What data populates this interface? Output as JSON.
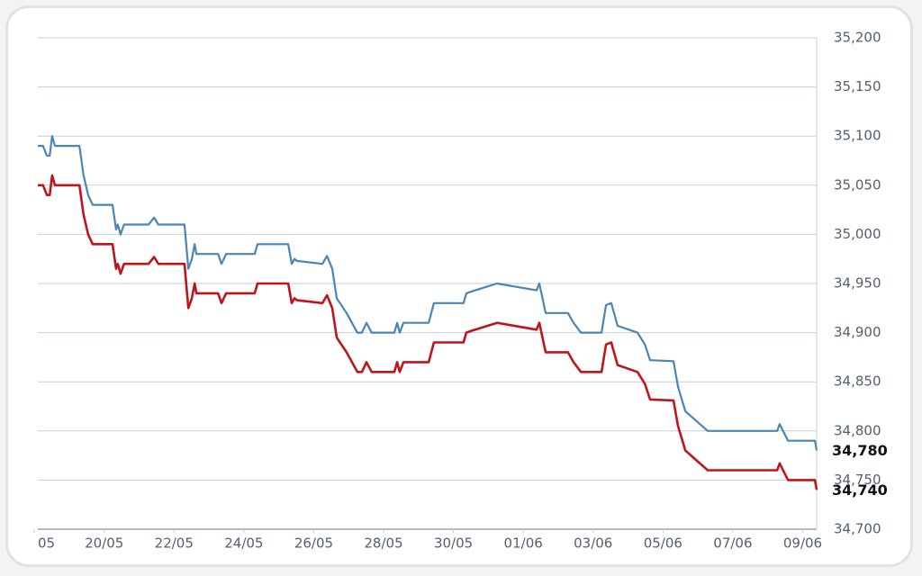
{
  "chart_data": {
    "type": "line",
    "x": [
      138.1,
      138.25,
      138.36,
      138.44,
      138.51,
      138.59,
      139.29,
      139.41,
      139.54,
      139.67,
      140.24,
      140.34,
      140.39,
      140.47,
      140.57,
      141.27,
      141.43,
      141.55,
      142.3,
      142.41,
      142.51,
      142.59,
      142.64,
      143.26,
      143.36,
      143.49,
      144.31,
      144.39,
      145.27,
      145.37,
      145.45,
      145.52,
      146.25,
      146.38,
      146.53,
      146.66,
      146.94,
      147.25,
      147.38,
      147.51,
      147.66,
      148.31,
      148.39,
      148.46,
      148.57,
      149.29,
      149.44,
      150.29,
      150.37,
      150.53,
      151.25,
      152.38,
      152.46,
      152.64,
      153.28,
      153.44,
      153.65,
      154.24,
      154.37,
      154.52,
      154.7,
      155.27,
      155.48,
      155.63,
      156.3,
      156.43,
      156.64,
      157.28,
      159.27,
      159.34,
      159.58,
      160.35,
      160.4
    ],
    "series": [
      {
        "color": "#4a86b4",
        "values": [
          35090,
          35090,
          35080,
          35080,
          35100,
          35090,
          35090,
          35060,
          35040,
          35030,
          35030,
          35005,
          35010,
          35000,
          35010,
          35010,
          35017,
          35010,
          35010,
          34965,
          34975,
          34990,
          34980,
          34980,
          34970,
          34980,
          34980,
          34990,
          34990,
          34970,
          34975,
          34973,
          34970,
          34978,
          34965,
          34935,
          34920,
          34900,
          34900,
          34910,
          34900,
          34900,
          34910,
          34900,
          34910,
          34910,
          34930,
          34930,
          34940,
          34942,
          34950,
          34943,
          34950,
          34920,
          34920,
          34910,
          34900,
          34900,
          34928,
          34930,
          34907,
          34900,
          34888,
          34872,
          34871,
          34845,
          34820,
          34800,
          34800,
          34807,
          34790,
          34790,
          34780
        ],
        "value_labels": [
          null,
          null,
          null,
          null,
          null,
          null,
          null,
          null,
          null,
          null,
          null,
          null,
          null,
          null,
          null,
          null,
          null,
          null,
          null,
          null,
          null,
          null,
          null,
          null,
          null,
          null,
          null,
          null,
          null,
          null,
          null,
          null,
          null,
          null,
          null,
          null,
          null,
          null,
          null,
          null,
          null,
          null,
          null,
          null,
          null,
          null,
          null,
          null,
          null,
          null,
          null,
          null,
          null,
          null,
          null,
          null,
          null,
          null,
          null,
          null,
          null,
          null,
          null,
          null,
          null,
          null,
          null,
          null,
          null,
          null,
          null,
          null,
          "34,780"
        ]
      },
      {
        "color": "#c0141c",
        "values": [
          35050,
          35050,
          35040,
          35040,
          35060,
          35050,
          35050,
          35020,
          35000,
          34990,
          34990,
          34965,
          34970,
          34960,
          34970,
          34970,
          34977,
          34970,
          34970,
          34925,
          34935,
          34950,
          34940,
          34940,
          34930,
          34940,
          34940,
          34950,
          34950,
          34930,
          34935,
          34933,
          34930,
          34938,
          34925,
          34895,
          34880,
          34860,
          34860,
          34870,
          34860,
          34860,
          34870,
          34860,
          34870,
          34870,
          34890,
          34890,
          34900,
          34902,
          34910,
          34903,
          34910,
          34880,
          34880,
          34870,
          34860,
          34860,
          34888,
          34890,
          34867,
          34860,
          34848,
          34832,
          34831,
          34805,
          34780,
          34760,
          34760,
          34767,
          34750,
          34750,
          34740
        ],
        "value_labels": [
          null,
          null,
          null,
          null,
          null,
          null,
          null,
          null,
          null,
          null,
          null,
          null,
          null,
          null,
          null,
          null,
          null,
          null,
          null,
          null,
          null,
          null,
          null,
          null,
          null,
          null,
          null,
          null,
          null,
          null,
          null,
          null,
          null,
          null,
          null,
          null,
          null,
          null,
          null,
          null,
          null,
          null,
          null,
          null,
          null,
          null,
          null,
          null,
          null,
          null,
          null,
          null,
          null,
          null,
          null,
          null,
          null,
          null,
          null,
          null,
          null,
          null,
          null,
          null,
          null,
          null,
          null,
          null,
          null,
          null,
          null,
          null,
          "34,740"
        ]
      }
    ],
    "xlim": [
      138.1,
      160.4
    ],
    "xticks": [
      {
        "value": 138,
        "label": "05"
      },
      {
        "value": 140,
        "label": "20/05"
      },
      {
        "value": 142,
        "label": "22/05"
      },
      {
        "value": 144,
        "label": "24/05"
      },
      {
        "value": 146,
        "label": "26/05"
      },
      {
        "value": 148,
        "label": "28/05"
      },
      {
        "value": 150,
        "label": "30/05"
      },
      {
        "value": 152,
        "label": "01/06"
      },
      {
        "value": 154,
        "label": "03/06"
      },
      {
        "value": 156,
        "label": "05/06"
      },
      {
        "value": 158,
        "label": "07/06"
      },
      {
        "value": 160,
        "label": "09/06"
      }
    ],
    "ylim": [
      34700,
      35200
    ],
    "yticks": [
      {
        "value": 34700,
        "label": "34,700"
      },
      {
        "value": 34750,
        "label": "34,750"
      },
      {
        "value": 34800,
        "label": "34,800"
      },
      {
        "value": 34850,
        "label": "34,850"
      },
      {
        "value": 34900,
        "label": "34,900"
      },
      {
        "value": 34950,
        "label": "34,950"
      },
      {
        "value": 35000,
        "label": "35,000"
      },
      {
        "value": 35050,
        "label": "35,050"
      },
      {
        "value": 35100,
        "label": "35,100"
      },
      {
        "value": 35150,
        "label": "35,150"
      },
      {
        "value": 35200,
        "label": "35,200"
      }
    ],
    "grid": true
  }
}
